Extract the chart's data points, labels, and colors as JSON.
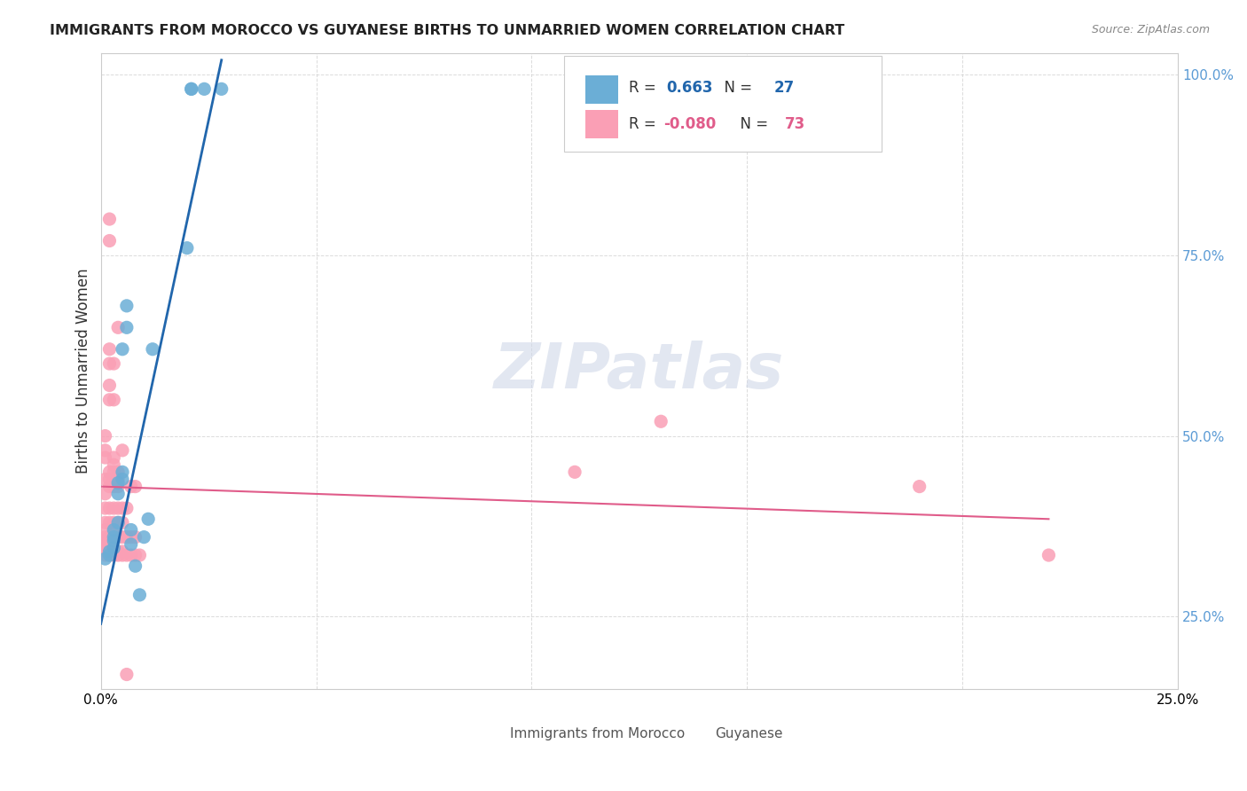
{
  "title": "IMMIGRANTS FROM MOROCCO VS GUYANESE BIRTHS TO UNMARRIED WOMEN CORRELATION CHART",
  "source": "Source: ZipAtlas.com",
  "xlabel_bottom": "",
  "ylabel_left": "Births to Unmarried Women",
  "x_label_bottom_ticks": [
    "0.0%",
    "25.0%"
  ],
  "y_label_right_ticks": [
    "25.0%",
    "50.0%",
    "75.0%",
    "100.0%"
  ],
  "legend_blue_r": "R =  0.663",
  "legend_blue_n": "N = 27",
  "legend_pink_r": "R = -0.080",
  "legend_pink_n": "N = 73",
  "legend_blue_label": "Immigrants from Morocco",
  "legend_pink_label": "Guyanese",
  "xlim": [
    0.0,
    0.25
  ],
  "ylim": [
    0.15,
    1.03
  ],
  "blue_scatter": [
    [
      0.001,
      0.33
    ],
    [
      0.002,
      0.335
    ],
    [
      0.002,
      0.34
    ],
    [
      0.003,
      0.345
    ],
    [
      0.003,
      0.355
    ],
    [
      0.003,
      0.36
    ],
    [
      0.003,
      0.37
    ],
    [
      0.004,
      0.38
    ],
    [
      0.004,
      0.42
    ],
    [
      0.004,
      0.435
    ],
    [
      0.005,
      0.44
    ],
    [
      0.005,
      0.45
    ],
    [
      0.005,
      0.62
    ],
    [
      0.006,
      0.65
    ],
    [
      0.006,
      0.68
    ],
    [
      0.007,
      0.35
    ],
    [
      0.007,
      0.37
    ],
    [
      0.008,
      0.32
    ],
    [
      0.009,
      0.28
    ],
    [
      0.01,
      0.36
    ],
    [
      0.011,
      0.385
    ],
    [
      0.012,
      0.62
    ],
    [
      0.02,
      0.76
    ],
    [
      0.021,
      0.98
    ],
    [
      0.021,
      0.98
    ],
    [
      0.024,
      0.98
    ],
    [
      0.028,
      0.98
    ]
  ],
  "pink_scatter": [
    [
      0.001,
      0.335
    ],
    [
      0.001,
      0.34
    ],
    [
      0.001,
      0.345
    ],
    [
      0.001,
      0.35
    ],
    [
      0.001,
      0.355
    ],
    [
      0.001,
      0.36
    ],
    [
      0.001,
      0.37
    ],
    [
      0.001,
      0.38
    ],
    [
      0.001,
      0.4
    ],
    [
      0.001,
      0.42
    ],
    [
      0.001,
      0.44
    ],
    [
      0.001,
      0.47
    ],
    [
      0.001,
      0.48
    ],
    [
      0.001,
      0.5
    ],
    [
      0.002,
      0.335
    ],
    [
      0.002,
      0.34
    ],
    [
      0.002,
      0.35
    ],
    [
      0.002,
      0.36
    ],
    [
      0.002,
      0.38
    ],
    [
      0.002,
      0.4
    ],
    [
      0.002,
      0.43
    ],
    [
      0.002,
      0.44
    ],
    [
      0.002,
      0.45
    ],
    [
      0.002,
      0.55
    ],
    [
      0.002,
      0.57
    ],
    [
      0.002,
      0.6
    ],
    [
      0.002,
      0.62
    ],
    [
      0.002,
      0.77
    ],
    [
      0.002,
      0.8
    ],
    [
      0.003,
      0.335
    ],
    [
      0.003,
      0.34
    ],
    [
      0.003,
      0.345
    ],
    [
      0.003,
      0.36
    ],
    [
      0.003,
      0.37
    ],
    [
      0.003,
      0.38
    ],
    [
      0.003,
      0.4
    ],
    [
      0.003,
      0.43
    ],
    [
      0.003,
      0.44
    ],
    [
      0.003,
      0.45
    ],
    [
      0.003,
      0.46
    ],
    [
      0.003,
      0.47
    ],
    [
      0.003,
      0.55
    ],
    [
      0.003,
      0.6
    ],
    [
      0.004,
      0.335
    ],
    [
      0.004,
      0.34
    ],
    [
      0.004,
      0.36
    ],
    [
      0.004,
      0.38
    ],
    [
      0.004,
      0.4
    ],
    [
      0.004,
      0.43
    ],
    [
      0.004,
      0.44
    ],
    [
      0.004,
      0.45
    ],
    [
      0.004,
      0.65
    ],
    [
      0.005,
      0.335
    ],
    [
      0.005,
      0.34
    ],
    [
      0.005,
      0.36
    ],
    [
      0.005,
      0.38
    ],
    [
      0.005,
      0.4
    ],
    [
      0.005,
      0.48
    ],
    [
      0.006,
      0.335
    ],
    [
      0.006,
      0.36
    ],
    [
      0.006,
      0.4
    ],
    [
      0.006,
      0.17
    ],
    [
      0.007,
      0.335
    ],
    [
      0.007,
      0.36
    ],
    [
      0.007,
      0.43
    ],
    [
      0.008,
      0.335
    ],
    [
      0.008,
      0.36
    ],
    [
      0.008,
      0.43
    ],
    [
      0.009,
      0.335
    ],
    [
      0.11,
      0.45
    ],
    [
      0.13,
      0.52
    ],
    [
      0.19,
      0.43
    ],
    [
      0.22,
      0.335
    ]
  ],
  "blue_line": [
    [
      0.0,
      0.24
    ],
    [
      0.028,
      1.02
    ]
  ],
  "pink_line": [
    [
      0.0,
      0.43
    ],
    [
      0.22,
      0.385
    ]
  ],
  "blue_color": "#6baed6",
  "pink_color": "#fa9fb5",
  "blue_line_color": "#2166ac",
  "pink_line_color": "#e05c8a",
  "watermark": "ZIPatlas",
  "watermark_color": "#d0d8e8",
  "background_color": "#ffffff",
  "grid_color": "#cccccc"
}
